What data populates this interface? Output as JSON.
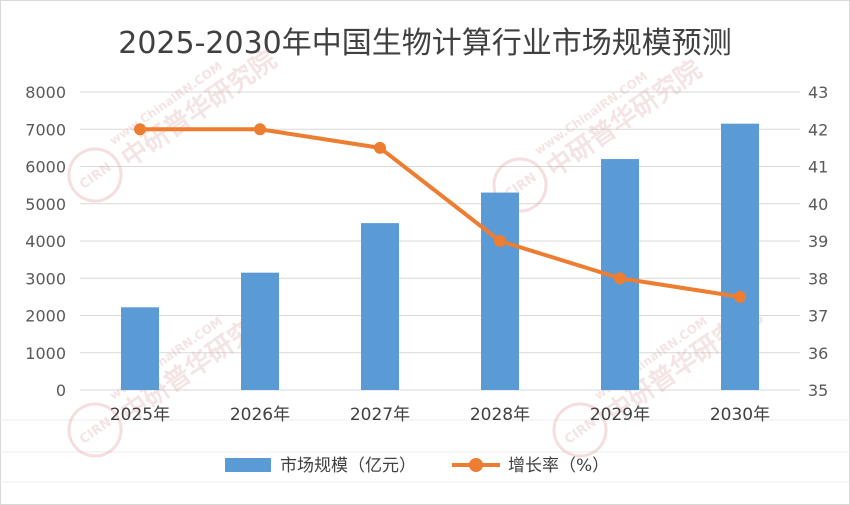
{
  "chart_data": {
    "type": "bar",
    "title": "2025-2030年中国生物计算行业市场规模预测",
    "categories": [
      "2025年",
      "2026年",
      "2027年",
      "2028年",
      "2029年",
      "2030年"
    ],
    "series": [
      {
        "name": "市场规模（亿元）",
        "type": "bar",
        "axis": "left",
        "color": "#5b9bd5",
        "values": [
          2220,
          3150,
          4480,
          5300,
          6200,
          7150
        ]
      },
      {
        "name": "增长率（%）",
        "type": "line",
        "axis": "right",
        "color": "#ed7d31",
        "values": [
          42,
          42,
          41.5,
          39,
          38,
          37.5
        ]
      }
    ],
    "y_left": {
      "min": 0,
      "max": 8000,
      "step": 1000
    },
    "y_right": {
      "min": 35,
      "max": 43,
      "step": 1
    },
    "grid": true,
    "legend": "bottom"
  },
  "watermark": {
    "text": "中研普华研究院",
    "url": "www.ChinaIRN.COM",
    "badge": "CIRN"
  }
}
